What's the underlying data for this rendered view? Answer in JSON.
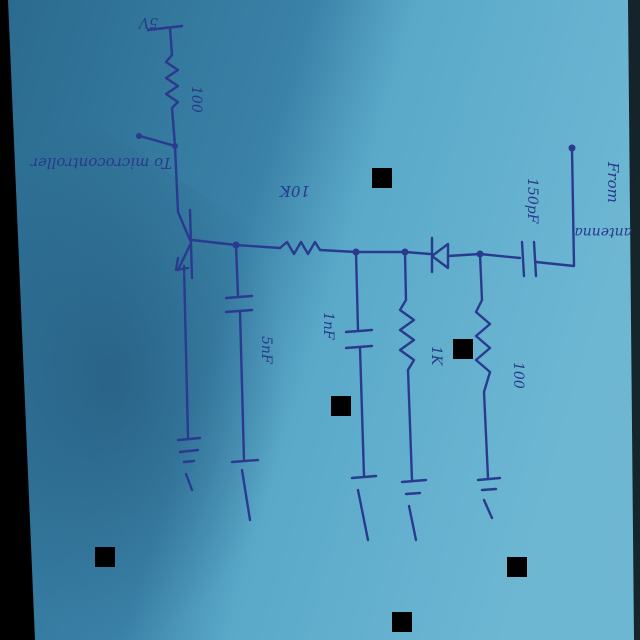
{
  "labels": {
    "supply": "5V",
    "r_top": "100",
    "to_mcu": "To microcontroller",
    "r_series": "10K",
    "cap_coupling": "150pF",
    "from_antenna_1": "From",
    "from_antenna_2": "antenna",
    "cap_left": "5nF",
    "cap_mid": "1nF",
    "r_mid": "1K",
    "r_right": "100"
  },
  "colors": {
    "paper": "#4f9fc0",
    "paper_shadow": "#2f6f93",
    "ink": "#2a3a8f",
    "background": "#000000"
  }
}
